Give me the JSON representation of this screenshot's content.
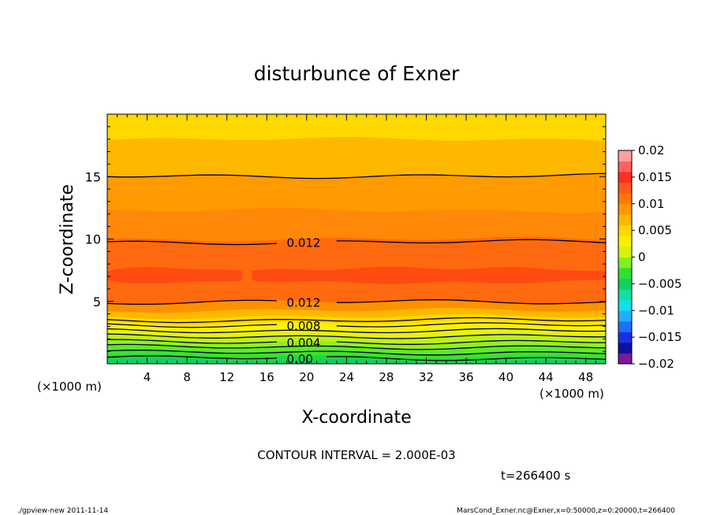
{
  "chart_data": {
    "type": "heatmap",
    "title": "disturbunce of Exner",
    "xlabel": "X-coordinate",
    "ylabel": "Z-coordinate",
    "x_unit_left": "(×1000 m)",
    "x_unit_right": "(×1000 m)",
    "xlim": [
      0,
      50
    ],
    "ylim": [
      0,
      20
    ],
    "x_ticks": [
      4,
      8,
      12,
      16,
      20,
      24,
      28,
      32,
      36,
      40,
      44,
      48
    ],
    "y_ticks": [
      5,
      10,
      15
    ],
    "colorbar": {
      "ticks": [
        0.02,
        0.015,
        0.01,
        0.005,
        0,
        -0.005,
        -0.01,
        -0.015,
        -0.02
      ],
      "tick_labels": [
        "0.02",
        "0.015",
        "0.01",
        "0.005",
        "0",
        "−0.005",
        "−0.01",
        "−0.015",
        "−0.02"
      ],
      "colors_low_to_high": [
        "#7a1a9a",
        "#1010a0",
        "#1a30e0",
        "#1a70ff",
        "#20b0ff",
        "#10e0e8",
        "#10e0a0",
        "#10d060",
        "#30e030",
        "#80f020",
        "#d8f010",
        "#f8f000",
        "#ffd800",
        "#ffb800",
        "#ff9800",
        "#ff7800",
        "#ff5820",
        "#ff3020",
        "#ff6060",
        "#ffa0a0"
      ]
    },
    "bands_by_height": [
      {
        "z0": 0.0,
        "z1": 0.3,
        "color": "#10d060"
      },
      {
        "z0": 0.3,
        "z1": 0.6,
        "color": "#20d840"
      },
      {
        "z0": 0.6,
        "z1": 1.0,
        "color": "#40e030"
      },
      {
        "z0": 1.0,
        "z1": 1.4,
        "color": "#60e828"
      },
      {
        "z0": 1.4,
        "z1": 1.8,
        "color": "#90f020"
      },
      {
        "z0": 1.8,
        "z1": 2.3,
        "color": "#c0f018"
      },
      {
        "z0": 2.3,
        "z1": 2.8,
        "color": "#e8f010"
      },
      {
        "z0": 2.8,
        "z1": 3.3,
        "color": "#fff000"
      },
      {
        "z0": 3.3,
        "z1": 3.8,
        "color": "#ffd800"
      },
      {
        "z0": 3.8,
        "z1": 4.3,
        "color": "#ffb800"
      },
      {
        "z0": 4.3,
        "z1": 5.0,
        "color": "#ff9000"
      },
      {
        "z0": 5.0,
        "z1": 10.0,
        "color": "#ff6a10"
      },
      {
        "z0": 10.0,
        "z1": 12.3,
        "color": "#ff8808"
      },
      {
        "z0": 12.3,
        "z1": 15.1,
        "color": "#ff9a00"
      },
      {
        "z0": 15.1,
        "z1": 18.0,
        "color": "#ffb800"
      },
      {
        "z0": 18.0,
        "z1": 20.0,
        "color": "#ffd800"
      }
    ],
    "core_region": {
      "color": "#ff4a10",
      "z_range": [
        6.3,
        7.8
      ]
    },
    "contours": [
      {
        "z": 0.45,
        "label": "0.00",
        "label_x": 18
      },
      {
        "z": 0.9,
        "label": ""
      },
      {
        "z": 1.35,
        "label": ""
      },
      {
        "z": 1.75,
        "label": "0.004",
        "label_x": 18
      },
      {
        "z": 2.2,
        "label": ""
      },
      {
        "z": 2.65,
        "label": ""
      },
      {
        "z": 3.1,
        "label": "0.008",
        "label_x": 18
      },
      {
        "z": 3.5,
        "label": ""
      },
      {
        "z": 4.95,
        "label": "0.012",
        "label_x": 18
      },
      {
        "z": 9.75,
        "label": "0.012",
        "label_x": 18
      },
      {
        "z": 15.05,
        "label": ""
      }
    ],
    "contour_interval_text": "CONTOUR INTERVAL = 2.000E-03",
    "time_text": "t=266400 s"
  },
  "footer": {
    "left": "./gpview-new  2011-11-14",
    "right": "MarsCond_Exner.nc@Exner,x=0:50000,z=0:20000,t=266400"
  }
}
